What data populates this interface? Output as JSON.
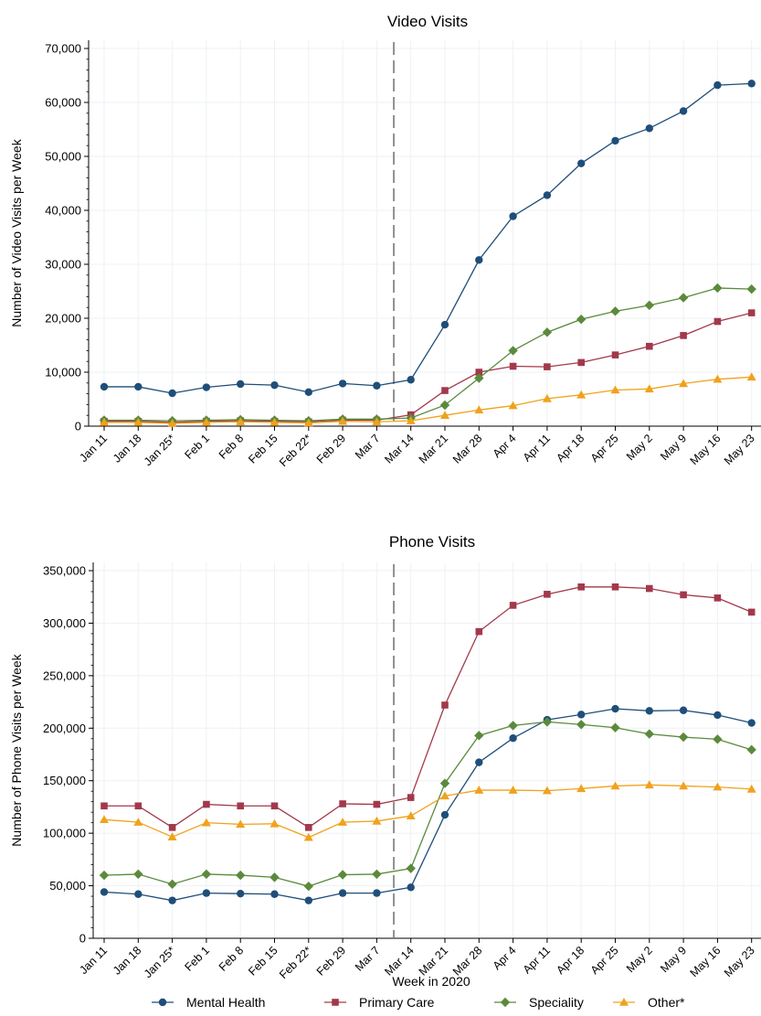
{
  "chart_data": [
    {
      "type": "line",
      "title": "Video Visits",
      "xlabel": "",
      "ylabel": "Number of Video Visits per Week",
      "ylim": [
        0,
        70000
      ],
      "yticks": [
        0,
        10000,
        20000,
        30000,
        40000,
        50000,
        60000,
        70000
      ],
      "ytick_labels": [
        "0",
        "10,000",
        "20,000",
        "30,000",
        "40,000",
        "50,000",
        "60,000",
        "70,000"
      ],
      "categories": [
        "Jan 11",
        "Jan 18",
        "Jan 25*",
        "Feb 1",
        "Feb 8",
        "Feb 15",
        "Feb 22*",
        "Feb 29",
        "Mar 7",
        "Mar 14",
        "Mar 21",
        "Mar 28",
        "Apr 4",
        "Apr 11",
        "Apr 18",
        "Apr 25",
        "May 2",
        "May 9",
        "May 16",
        "May 23"
      ],
      "vline_after_category": "Mar 7",
      "grid": true,
      "series": [
        {
          "name": "Mental Health",
          "color": "#1f4e79",
          "marker": "circle",
          "values": [
            7300,
            7300,
            6100,
            7200,
            7800,
            7600,
            6300,
            7900,
            7500,
            8600,
            18800,
            30800,
            38900,
            42800,
            48700,
            52900,
            55200,
            58400,
            63200,
            63500
          ]
        },
        {
          "name": "Primary Care",
          "color": "#a2394b",
          "marker": "square",
          "values": [
            900,
            900,
            700,
            900,
            1000,
            900,
            800,
            1100,
            1100,
            2100,
            6600,
            10000,
            11100,
            11000,
            11800,
            13200,
            14800,
            16800,
            19400,
            21000
          ]
        },
        {
          "name": "Speciality",
          "color": "#5b8a3c",
          "marker": "diamond",
          "values": [
            1100,
            1100,
            1000,
            1100,
            1200,
            1100,
            1000,
            1300,
            1300,
            1500,
            3900,
            8900,
            14000,
            17400,
            19800,
            21300,
            22400,
            23800,
            25600,
            25400
          ]
        },
        {
          "name": "Other*",
          "color": "#f0a21c",
          "marker": "triangle",
          "values": [
            700,
            700,
            500,
            700,
            800,
            700,
            600,
            900,
            800,
            1000,
            2000,
            3000,
            3800,
            5100,
            5800,
            6700,
            6900,
            7900,
            8700,
            9100
          ]
        }
      ]
    },
    {
      "type": "line",
      "title": "Phone Visits",
      "xlabel": "Week in 2020",
      "ylabel": "Number of Phone Visits per Week",
      "ylim": [
        0,
        350000
      ],
      "yticks": [
        0,
        50000,
        100000,
        150000,
        200000,
        250000,
        300000,
        350000
      ],
      "ytick_labels": [
        "0",
        "50,000",
        "100,000",
        "150,000",
        "200,000",
        "250,000",
        "300,000",
        "350,000"
      ],
      "categories": [
        "Jan 11",
        "Jan 18",
        "Jan 25*",
        "Feb 1",
        "Feb 8",
        "Feb 15",
        "Feb 22*",
        "Feb 29",
        "Mar 7",
        "Mar 14",
        "Mar 21",
        "Mar 28",
        "Apr 4",
        "Apr 11",
        "Apr 18",
        "Apr 25",
        "May 2",
        "May 9",
        "May 16",
        "May 23"
      ],
      "vline_after_category": "Mar 7",
      "grid": true,
      "series": [
        {
          "name": "Mental Health",
          "color": "#1f4e79",
          "marker": "circle",
          "values": [
            44000,
            42000,
            36000,
            43000,
            42500,
            42000,
            36000,
            43000,
            43000,
            48500,
            117500,
            167500,
            190500,
            208000,
            213000,
            218500,
            216500,
            217000,
            212500,
            205000
          ]
        },
        {
          "name": "Primary Care",
          "color": "#a2394b",
          "marker": "square",
          "values": [
            126000,
            126000,
            105500,
            127500,
            126000,
            126000,
            105500,
            128000,
            127500,
            134000,
            222000,
            292000,
            317000,
            327500,
            334500,
            334500,
            333000,
            327000,
            324000,
            310500
          ]
        },
        {
          "name": "Speciality",
          "color": "#5b8a3c",
          "marker": "diamond",
          "values": [
            60000,
            61000,
            51500,
            61000,
            60000,
            58000,
            49500,
            60500,
            61000,
            66500,
            147500,
            193000,
            202500,
            206000,
            203500,
            200500,
            194500,
            191500,
            189500,
            179500
          ]
        },
        {
          "name": "Other*",
          "color": "#f0a21c",
          "marker": "triangle",
          "values": [
            113000,
            110500,
            96500,
            110000,
            108500,
            109000,
            96000,
            110500,
            111500,
            116500,
            135500,
            141000,
            141000,
            140500,
            142500,
            145000,
            146000,
            145000,
            144000,
            142000
          ]
        }
      ]
    }
  ],
  "legend": {
    "placement": "bottom",
    "items": [
      {
        "label": "Mental Health",
        "color": "#1f4e79",
        "marker": "circle"
      },
      {
        "label": "Primary Care",
        "color": "#a2394b",
        "marker": "square"
      },
      {
        "label": "Speciality",
        "color": "#5b8a3c",
        "marker": "diamond"
      },
      {
        "label": "Other*",
        "color": "#f0a21c",
        "marker": "triangle"
      }
    ]
  }
}
